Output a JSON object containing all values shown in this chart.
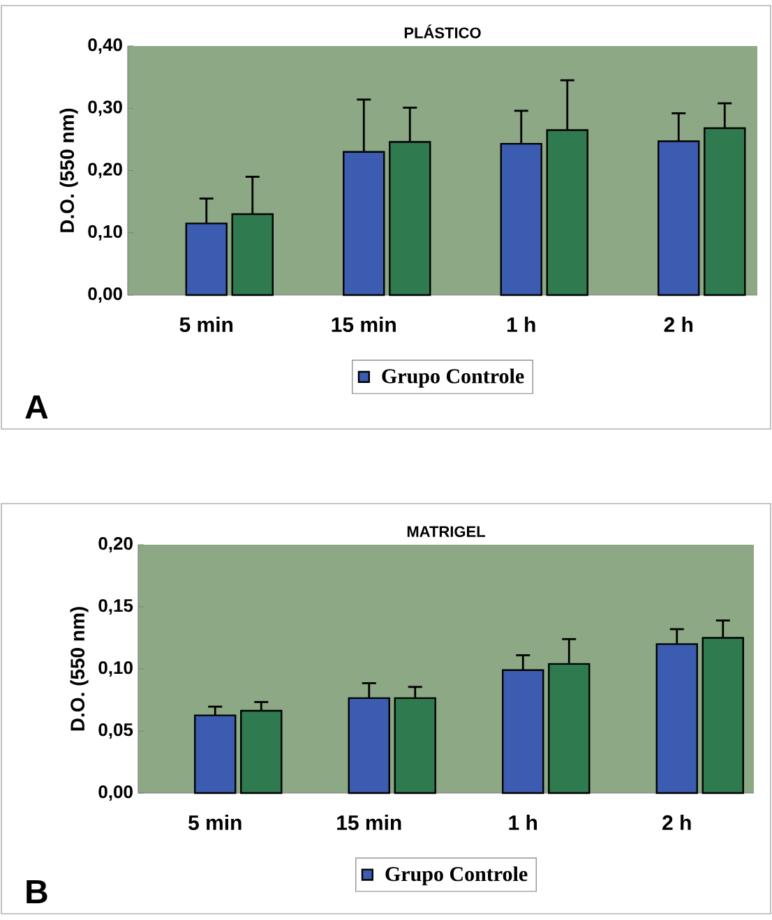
{
  "chart_data": [
    {
      "type": "bar",
      "title": "PLÁSTICO",
      "ylabel": "D.O. (550 nm)",
      "categories": [
        "5 min",
        "15 min",
        "1 h",
        "2 h"
      ],
      "series": [
        {
          "name": "Grupo Controle",
          "color": "#3b5cb0",
          "values": [
            0.115,
            0.23,
            0.243,
            0.247
          ],
          "errors": [
            0.04,
            0.084,
            0.053,
            0.045
          ]
        },
        {
          "color": "#2f7a4e",
          "values": [
            0.13,
            0.246,
            0.265,
            0.268
          ],
          "errors": [
            0.06,
            0.055,
            0.08,
            0.04
          ]
        }
      ],
      "ylim": [
        0,
        0.4
      ],
      "yticks": [
        {
          "value": 0,
          "label": "0,00"
        },
        {
          "value": 0.1,
          "label": "0,10"
        },
        {
          "value": 0.2,
          "label": "0,20"
        },
        {
          "value": 0.3,
          "label": "0,30"
        },
        {
          "value": 0.4,
          "label": "0,40"
        }
      ],
      "legend": "bottom",
      "annotations": [
        "A"
      ]
    },
    {
      "type": "bar",
      "title": "MATRIGEL",
      "ylabel": "D.O. (550 nm)",
      "categories": [
        "5 min",
        "15 min",
        "1 h",
        "2 h"
      ],
      "series": [
        {
          "name": "Grupo Controle",
          "color": "#3b5cb0",
          "values": [
            0.0626,
            0.0765,
            0.099,
            0.12
          ],
          "errors": [
            0.007,
            0.012,
            0.012,
            0.012
          ]
        },
        {
          "color": "#2f7a4e",
          "values": [
            0.0663,
            0.0765,
            0.104,
            0.125
          ],
          "errors": [
            0.007,
            0.009,
            0.02,
            0.014
          ]
        }
      ],
      "ylim": [
        0,
        0.2
      ],
      "yticks": [
        {
          "value": 0,
          "label": "0,00"
        },
        {
          "value": 0.05,
          "label": "0,05"
        },
        {
          "value": 0.1,
          "label": "0,10"
        },
        {
          "value": 0.15,
          "label": "0,15"
        },
        {
          "value": 0.2,
          "label": "0,20"
        }
      ],
      "legend": "bottom",
      "annotations": [
        "B"
      ]
    }
  ]
}
